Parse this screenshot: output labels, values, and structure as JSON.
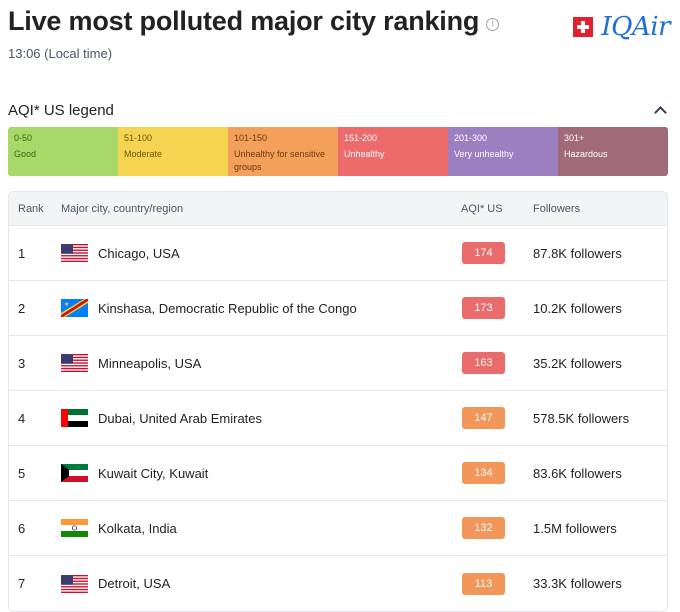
{
  "header": {
    "title": "Live most polluted major city ranking",
    "info_icon": "i",
    "local_time": "13:06 (Local time)",
    "brand": "IQAir"
  },
  "legend": {
    "title": "AQI* US legend",
    "segments": [
      {
        "range": "0-50",
        "label": "Good",
        "color": "#a8d868",
        "text_color": "#3f5f1c"
      },
      {
        "range": "51-100",
        "label": "Moderate",
        "color": "#f5d451",
        "text_color": "#6b5410"
      },
      {
        "range": "101-150",
        "label": "Unhealthy for sensitive groups",
        "color": "#f2a05a",
        "text_color": "#6e3a10"
      },
      {
        "range": "151-200",
        "label": "Unhealthy",
        "color": "#ed6b6b",
        "text_color": "#ffffff"
      },
      {
        "range": "201-300",
        "label": "Very unhealthy",
        "color": "#9b7fc1",
        "text_color": "#ffffff"
      },
      {
        "range": "301+",
        "label": "Hazardous",
        "color": "#a06a78",
        "text_color": "#ffffff"
      }
    ]
  },
  "table": {
    "columns": {
      "rank": "Rank",
      "city": "Major city, country/region",
      "aqi": "AQI* US",
      "followers": "Followers"
    },
    "rows": [
      {
        "rank": "1",
        "city": "Chicago, USA",
        "flag": "usa",
        "aqi": "174",
        "aqi_color": "#ea6b6b",
        "followers": "87.8K followers"
      },
      {
        "rank": "2",
        "city": "Kinshasa, Democratic Republic of the Congo",
        "flag": "drc",
        "aqi": "173",
        "aqi_color": "#ea6b6b",
        "followers": "10.2K followers"
      },
      {
        "rank": "3",
        "city": "Minneapolis, USA",
        "flag": "usa",
        "aqi": "163",
        "aqi_color": "#ea6b6b",
        "followers": "35.2K followers"
      },
      {
        "rank": "4",
        "city": "Dubai, United Arab Emirates",
        "flag": "uae",
        "aqi": "147",
        "aqi_color": "#f2965a",
        "followers": "578.5K followers"
      },
      {
        "rank": "5",
        "city": "Kuwait City, Kuwait",
        "flag": "kuwait",
        "aqi": "134",
        "aqi_color": "#f2965a",
        "followers": "83.6K followers"
      },
      {
        "rank": "6",
        "city": "Kolkata, India",
        "flag": "india",
        "aqi": "132",
        "aqi_color": "#f2965a",
        "followers": "1.5M followers"
      },
      {
        "rank": "7",
        "city": "Detroit, USA",
        "flag": "usa",
        "aqi": "113",
        "aqi_color": "#f2965a",
        "followers": "33.3K followers"
      }
    ]
  }
}
